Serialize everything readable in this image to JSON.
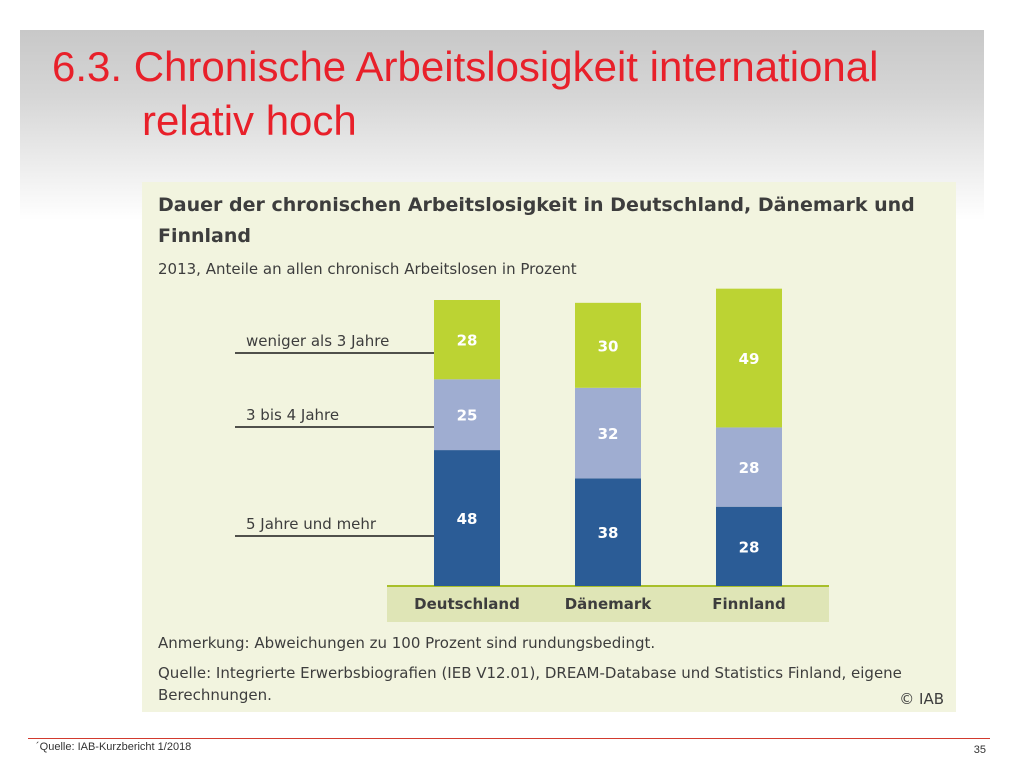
{
  "slide": {
    "title_line1": "6.3. Chronische Arbeitslosigkeit international",
    "title_line2": "relativ hoch",
    "footer_source": "´Quelle: IAB-Kurzbericht 1/2018",
    "page_number": "35",
    "accent_color": "#e8202a"
  },
  "chart_data": {
    "type": "bar",
    "stacked": true,
    "title": "Dauer der chronischen Arbeitslosigkeit in Deutschland, Dänemark und Finnland",
    "subtitle": "2013, Anteile an allen chronisch Arbeitslosen in Prozent",
    "categories": [
      "Deutschland",
      "Dänemark",
      "Finnland"
    ],
    "series": [
      {
        "name": "5 Jahre und mehr",
        "values": [
          48,
          38,
          28
        ],
        "color": "#2b5c96"
      },
      {
        "name": "3 bis 4 Jahre",
        "values": [
          25,
          32,
          28
        ],
        "color": "#9fadd1"
      },
      {
        "name": "weniger als 3 Jahre",
        "values": [
          28,
          30,
          49
        ],
        "color": "#bcd333"
      }
    ],
    "legend_placement": "left, labels pointing to bars",
    "grid": false,
    "note": "Anmerkung: Abweichungen zu 100 Prozent sind rundungsbedingt.",
    "source": "Quelle: Integrierte Erwerbsbiografien (IEB V12.01), DREAM-Database und Statistics Finland, eigene Berechnungen.",
    "copyright": "© IAB"
  }
}
